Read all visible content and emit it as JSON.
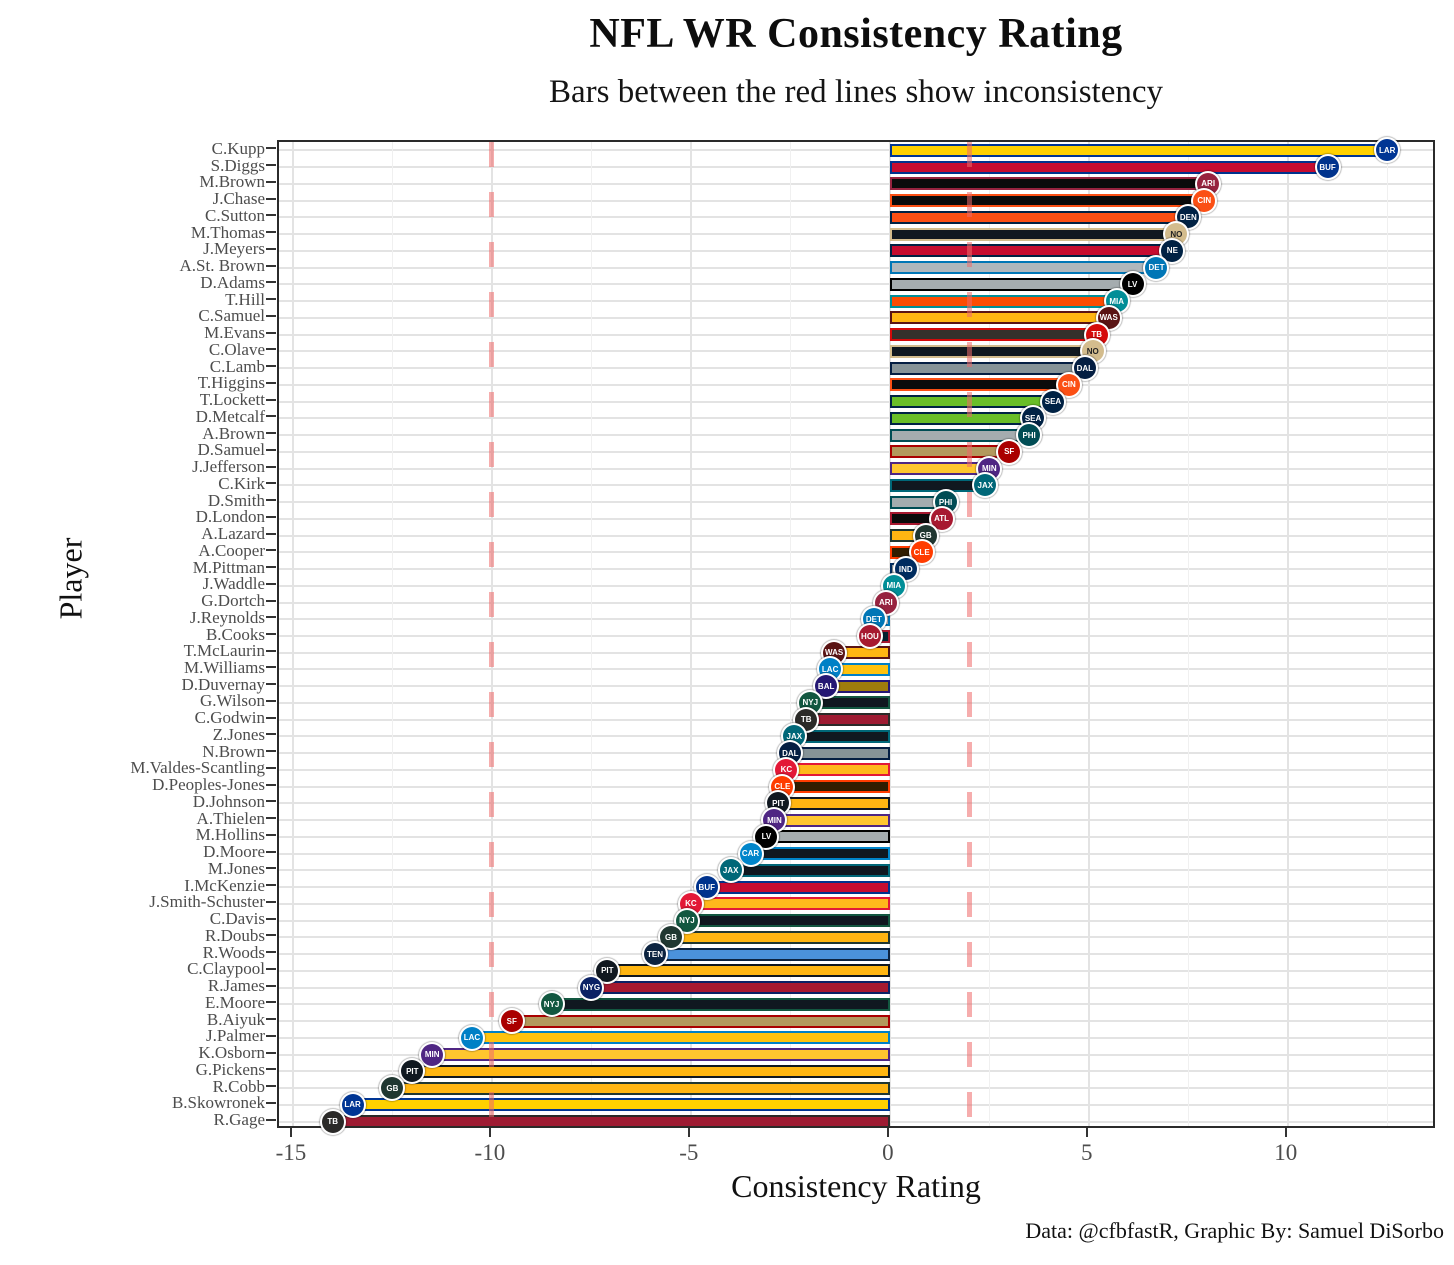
{
  "header": {
    "title": "NFL WR Consistency Rating",
    "subtitle": "Bars between the red lines show inconsistency"
  },
  "caption": "Data: @cfbfastR, Graphic By: Samuel DiSorbo",
  "chart_data": {
    "type": "bar",
    "orientation": "horizontal",
    "title": "NFL WR Consistency Rating",
    "subtitle": "Bars between the red lines show inconsistency",
    "xlabel": "Consistency Rating",
    "ylabel": "Player",
    "xlim": [
      -15.35,
      13.75
    ],
    "x_ticks": [
      -15,
      -10,
      -5,
      0,
      5,
      10
    ],
    "grid": {
      "major_x": [
        -15,
        -10,
        -5,
        0,
        5,
        10
      ],
      "minor_x": [
        -12.5,
        -7.5,
        -2.5,
        2.5,
        7.5,
        12.5
      ],
      "horizontal_per_row": true
    },
    "reference_lines": {
      "values": [
        -10,
        2
      ],
      "style": "dashed",
      "color": "#ee6a6a",
      "meaning": "bars between the red lines show inconsistency"
    },
    "players": [
      {
        "name": "C.Kupp",
        "team": "LAR",
        "value": 12.5,
        "fill": "#FFD100",
        "border": "#003594"
      },
      {
        "name": "S.Diggs",
        "team": "BUF",
        "value": 11.0,
        "fill": "#C60C30",
        "border": "#00338D"
      },
      {
        "name": "M.Brown",
        "team": "ARI",
        "value": 8.0,
        "fill": "#0b0b0b",
        "border": "#97233F"
      },
      {
        "name": "J.Chase",
        "team": "CIN",
        "value": 7.9,
        "fill": "#0b0b0b",
        "border": "#FB4F14"
      },
      {
        "name": "C.Sutton",
        "team": "DEN",
        "value": 7.5,
        "fill": "#FB4F14",
        "border": "#002244"
      },
      {
        "name": "M.Thomas",
        "team": "NO",
        "value": 7.2,
        "fill": "#101820",
        "border": "#D3BC8D"
      },
      {
        "name": "J.Meyers",
        "team": "NE",
        "value": 7.1,
        "fill": "#C60C30",
        "border": "#002244"
      },
      {
        "name": "A.St. Brown",
        "team": "DET",
        "value": 6.7,
        "fill": "#B0B7BC",
        "border": "#0076B6"
      },
      {
        "name": "D.Adams",
        "team": "LV",
        "value": 6.1,
        "fill": "#A5ACAF",
        "border": "#000000"
      },
      {
        "name": "T.Hill",
        "team": "MIA",
        "value": 5.7,
        "fill": "#FC4C02",
        "border": "#008E97"
      },
      {
        "name": "C.Samuel",
        "team": "WAS",
        "value": 5.5,
        "fill": "#FFB612",
        "border": "#5A1414"
      },
      {
        "name": "M.Evans",
        "team": "TB",
        "value": 5.2,
        "fill": "#34302B",
        "border": "#D50A0A"
      },
      {
        "name": "C.Olave",
        "team": "NO",
        "value": 5.1,
        "fill": "#101820",
        "border": "#D3BC8D"
      },
      {
        "name": "C.Lamb",
        "team": "DAL",
        "value": 4.9,
        "fill": "#869397",
        "border": "#041E42"
      },
      {
        "name": "T.Higgins",
        "team": "CIN",
        "value": 4.5,
        "fill": "#0b0b0b",
        "border": "#FB4F14"
      },
      {
        "name": "T.Lockett",
        "team": "SEA",
        "value": 4.1,
        "fill": "#69BE28",
        "border": "#002244"
      },
      {
        "name": "D.Metcalf",
        "team": "SEA",
        "value": 3.6,
        "fill": "#69BE28",
        "border": "#002244"
      },
      {
        "name": "A.Brown",
        "team": "PHI",
        "value": 3.5,
        "fill": "#A5ACAF",
        "border": "#004C54"
      },
      {
        "name": "D.Samuel",
        "team": "SF",
        "value": 3.0,
        "fill": "#B3995D",
        "border": "#AA0000"
      },
      {
        "name": "J.Jefferson",
        "team": "MIN",
        "value": 2.5,
        "fill": "#FFC62F",
        "border": "#4F2683"
      },
      {
        "name": "C.Kirk",
        "team": "JAX",
        "value": 2.4,
        "fill": "#101820",
        "border": "#006778"
      },
      {
        "name": "D.Smith",
        "team": "PHI",
        "value": 1.4,
        "fill": "#A5ACAF",
        "border": "#004C54"
      },
      {
        "name": "D.London",
        "team": "ATL",
        "value": 1.3,
        "fill": "#0b0b0b",
        "border": "#A71930"
      },
      {
        "name": "A.Lazard",
        "team": "GB",
        "value": 0.9,
        "fill": "#FFB612",
        "border": "#203731"
      },
      {
        "name": "A.Cooper",
        "team": "CLE",
        "value": 0.8,
        "fill": "#311D00",
        "border": "#FF3C00"
      },
      {
        "name": "M.Pittman",
        "team": "IND",
        "value": 0.4,
        "fill": "#A2AAAD",
        "border": "#002C5F"
      },
      {
        "name": "J.Waddle",
        "team": "MIA",
        "value": 0.1,
        "fill": "#FC4C02",
        "border": "#008E97"
      },
      {
        "name": "G.Dortch",
        "team": "ARI",
        "value": -0.1,
        "fill": "#0b0b0b",
        "border": "#97233F"
      },
      {
        "name": "J.Reynolds",
        "team": "DET",
        "value": -0.4,
        "fill": "#B0B7BC",
        "border": "#0076B6"
      },
      {
        "name": "B.Cooks",
        "team": "HOU",
        "value": -0.5,
        "fill": "#03202F",
        "border": "#A71930"
      },
      {
        "name": "T.McLaurin",
        "team": "WAS",
        "value": -1.4,
        "fill": "#FFB612",
        "border": "#5A1414"
      },
      {
        "name": "M.Williams",
        "team": "LAC",
        "value": -1.5,
        "fill": "#FFC20E",
        "border": "#0080C6"
      },
      {
        "name": "D.Duvernay",
        "team": "BAL",
        "value": -1.6,
        "fill": "#9E7C0C",
        "border": "#241773"
      },
      {
        "name": "G.Wilson",
        "team": "NYJ",
        "value": -2.0,
        "fill": "#101820",
        "border": "#125740"
      },
      {
        "name": "C.Godwin",
        "team": "TB",
        "value": -2.1,
        "fill": "#9E1B32",
        "border": "#2B2A28"
      },
      {
        "name": "Z.Jones",
        "team": "JAX",
        "value": -2.4,
        "fill": "#101820",
        "border": "#006778"
      },
      {
        "name": "N.Brown",
        "team": "DAL",
        "value": -2.5,
        "fill": "#869397",
        "border": "#041E42"
      },
      {
        "name": "M.Valdes-Scantling",
        "team": "KC",
        "value": -2.6,
        "fill": "#FFB81C",
        "border": "#E31837"
      },
      {
        "name": "D.Peoples-Jones",
        "team": "CLE",
        "value": -2.7,
        "fill": "#311D00",
        "border": "#FF3C00"
      },
      {
        "name": "D.Johnson",
        "team": "PIT",
        "value": -2.8,
        "fill": "#FFB612",
        "border": "#101820"
      },
      {
        "name": "A.Thielen",
        "team": "MIN",
        "value": -2.9,
        "fill": "#FFC62F",
        "border": "#4F2683"
      },
      {
        "name": "M.Hollins",
        "team": "LV",
        "value": -3.1,
        "fill": "#A5ACAF",
        "border": "#000000"
      },
      {
        "name": "D.Moore",
        "team": "CAR",
        "value": -3.5,
        "fill": "#101820",
        "border": "#0085CA"
      },
      {
        "name": "M.Jones",
        "team": "JAX",
        "value": -4.0,
        "fill": "#101820",
        "border": "#006778"
      },
      {
        "name": "I.McKenzie",
        "team": "BUF",
        "value": -4.6,
        "fill": "#C60C30",
        "border": "#00338D"
      },
      {
        "name": "J.Smith-Schuster",
        "team": "KC",
        "value": -5.0,
        "fill": "#FFB81C",
        "border": "#E31837"
      },
      {
        "name": "C.Davis",
        "team": "NYJ",
        "value": -5.1,
        "fill": "#101820",
        "border": "#125740"
      },
      {
        "name": "R.Doubs",
        "team": "GB",
        "value": -5.5,
        "fill": "#FFB612",
        "border": "#203731"
      },
      {
        "name": "R.Woods",
        "team": "TEN",
        "value": -5.9,
        "fill": "#4B92DB",
        "border": "#0C2340"
      },
      {
        "name": "C.Claypool",
        "team": "PIT",
        "value": -7.1,
        "fill": "#FFB612",
        "border": "#101820"
      },
      {
        "name": "R.James",
        "team": "NYG",
        "value": -7.5,
        "fill": "#A71930",
        "border": "#0B2265"
      },
      {
        "name": "E.Moore",
        "team": "NYJ",
        "value": -8.5,
        "fill": "#101820",
        "border": "#125740"
      },
      {
        "name": "B.Aiyuk",
        "team": "SF",
        "value": -9.5,
        "fill": "#B3995D",
        "border": "#AA0000"
      },
      {
        "name": "J.Palmer",
        "team": "LAC",
        "value": -10.5,
        "fill": "#FFC20E",
        "border": "#0080C6"
      },
      {
        "name": "K.Osborn",
        "team": "MIN",
        "value": -11.5,
        "fill": "#FFC62F",
        "border": "#4F2683"
      },
      {
        "name": "G.Pickens",
        "team": "PIT",
        "value": -12.0,
        "fill": "#FFB612",
        "border": "#101820"
      },
      {
        "name": "R.Cobb",
        "team": "GB",
        "value": -12.5,
        "fill": "#FFB612",
        "border": "#203731"
      },
      {
        "name": "B.Skowronek",
        "team": "LAR",
        "value": -13.5,
        "fill": "#FFD100",
        "border": "#003594"
      },
      {
        "name": "R.Gage",
        "team": "TB",
        "value": -14.0,
        "fill": "#9E1B32",
        "border": "#2B2A28"
      }
    ]
  }
}
